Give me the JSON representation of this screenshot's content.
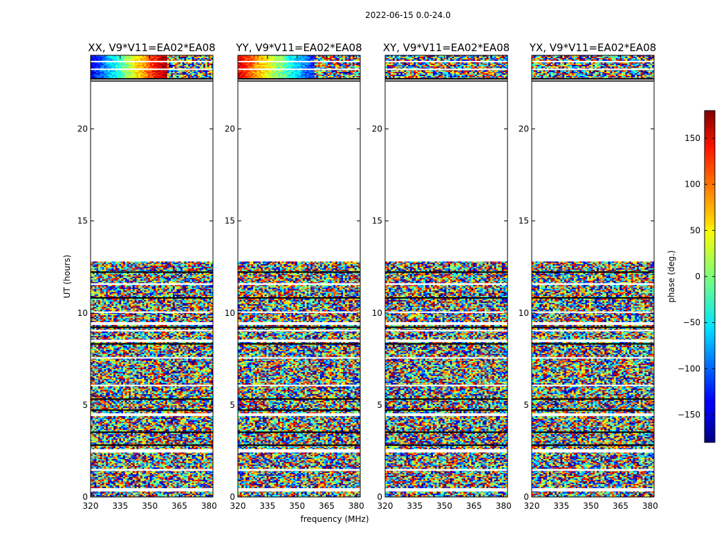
{
  "chart_data": {
    "type": "heatmap",
    "title": "2022-06-15 0.0-24.0",
    "xlabel": "frequency (MHz)",
    "ylabel": "UT (hours)",
    "xlim": [
      320,
      382
    ],
    "ylim": [
      0,
      24
    ],
    "xticks": [
      320,
      335,
      350,
      365,
      380
    ],
    "yticks": [
      0,
      5,
      10,
      15,
      20
    ],
    "colormap": "jet",
    "panels": [
      {
        "id": "xx",
        "title": "XX, V9*V11=EA02*EA08"
      },
      {
        "id": "yy",
        "title": "YY, V9*V11=EA02*EA08"
      },
      {
        "id": "xy",
        "title": "XY, V9*V11=EA02*EA08"
      },
      {
        "id": "yx",
        "title": "YX, V9*V11=EA02*EA08"
      }
    ],
    "data_blocks_hours": [
      [
        0.0,
        12.8
      ],
      [
        22.6,
        24.0
      ]
    ],
    "gap_hours": [
      12.8,
      22.6
    ],
    "colorbar": {
      "label": "phase (deg.)",
      "range": [
        -180,
        180
      ],
      "ticks": [
        -150,
        -100,
        -50,
        0,
        50,
        100,
        150
      ],
      "tick_labels": [
        "−150",
        "−100",
        "−50",
        "0",
        "50",
        "100",
        "150"
      ]
    }
  }
}
